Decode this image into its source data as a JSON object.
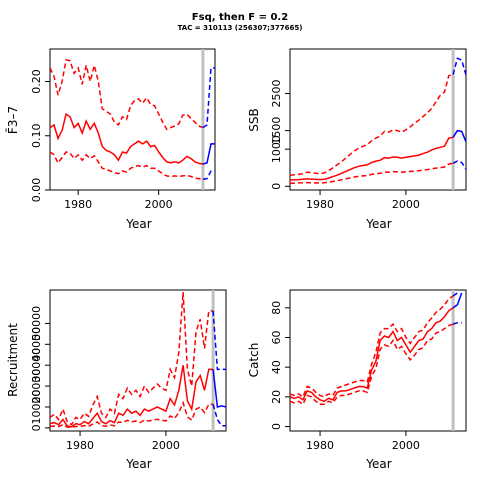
{
  "figure": {
    "title": "Fsq, then F = 0.2",
    "subtitle": "TAC = 310113 (256307;377665)"
  },
  "colors": {
    "historical": "#ff0000",
    "projection": "#0000ff",
    "divider": "#c0c0c0"
  },
  "chart_data": [
    {
      "type": "line",
      "ylabel": "F̄3–7",
      "xlabel": "Year",
      "xlim": [
        1973,
        2014
      ],
      "ylim": [
        0,
        0.26
      ],
      "x_ticks": [
        1980,
        2000
      ],
      "y_ticks": [
        0.0,
        0.1,
        0.2
      ],
      "y_tick_labels": [
        "0.00",
        "0.10",
        "0.20"
      ],
      "divider_x": 2011,
      "historical": {
        "x": [
          1973,
          1974,
          1975,
          1976,
          1977,
          1978,
          1979,
          1980,
          1981,
          1982,
          1983,
          1984,
          1985,
          1986,
          1987,
          1988,
          1989,
          1990,
          1991,
          1992,
          1993,
          1994,
          1995,
          1996,
          1997,
          1998,
          1999,
          2000,
          2001,
          2002,
          2003,
          2004,
          2005,
          2006,
          2007,
          2008,
          2009,
          2010,
          2011
        ],
        "median": [
          0.115,
          0.12,
          0.095,
          0.11,
          0.14,
          0.135,
          0.115,
          0.123,
          0.105,
          0.127,
          0.112,
          0.123,
          0.105,
          0.08,
          0.073,
          0.07,
          0.065,
          0.055,
          0.07,
          0.068,
          0.08,
          0.085,
          0.09,
          0.085,
          0.09,
          0.08,
          0.082,
          0.07,
          0.06,
          0.052,
          0.05,
          0.052,
          0.05,
          0.055,
          0.062,
          0.058,
          0.052,
          0.049,
          0.048
        ],
        "upper": [
          0.225,
          0.21,
          0.175,
          0.2,
          0.24,
          0.238,
          0.215,
          0.225,
          0.195,
          0.23,
          0.2,
          0.23,
          0.2,
          0.15,
          0.145,
          0.14,
          0.125,
          0.12,
          0.135,
          0.13,
          0.155,
          0.165,
          0.168,
          0.16,
          0.17,
          0.158,
          0.155,
          0.14,
          0.125,
          0.112,
          0.115,
          0.118,
          0.122,
          0.138,
          0.14,
          0.132,
          0.125,
          0.118,
          0.115
        ],
        "lower": [
          0.07,
          0.065,
          0.05,
          0.06,
          0.07,
          0.068,
          0.058,
          0.065,
          0.055,
          0.065,
          0.058,
          0.063,
          0.052,
          0.04,
          0.038,
          0.035,
          0.032,
          0.03,
          0.035,
          0.033,
          0.04,
          0.043,
          0.045,
          0.042,
          0.045,
          0.04,
          0.04,
          0.035,
          0.03,
          0.026,
          0.025,
          0.026,
          0.025,
          0.026,
          0.027,
          0.025,
          0.022,
          0.021,
          0.02
        ]
      },
      "projection": {
        "x": [
          2011,
          2012,
          2013,
          2014
        ],
        "median": [
          0.048,
          0.05,
          0.085,
          0.085
        ],
        "upper": [
          0.115,
          0.12,
          0.225,
          0.225
        ],
        "lower": [
          0.02,
          0.021,
          0.035,
          0.035
        ]
      }
    },
    {
      "type": "line",
      "ylabel": "SSB",
      "xlabel": "Year",
      "xlim": [
        1973,
        2014
      ],
      "ylim": [
        -100,
        3700
      ],
      "x_ticks": [
        1980,
        2000
      ],
      "y_ticks": [
        0,
        1000,
        1500,
        2500
      ],
      "y_tick_labels": [
        "0",
        "1000",
        "1500",
        "2500"
      ],
      "divider_x": 2011,
      "historical": {
        "x": [
          1973,
          1974,
          1975,
          1976,
          1977,
          1978,
          1979,
          1980,
          1981,
          1982,
          1983,
          1984,
          1985,
          1986,
          1987,
          1988,
          1989,
          1990,
          1991,
          1992,
          1993,
          1994,
          1995,
          1996,
          1997,
          1998,
          1999,
          2000,
          2001,
          2002,
          2003,
          2004,
          2005,
          2006,
          2007,
          2008,
          2009,
          2010,
          2011
        ],
        "median": [
          170,
          175,
          180,
          190,
          200,
          195,
          185,
          180,
          190,
          220,
          260,
          300,
          350,
          400,
          450,
          500,
          540,
          560,
          580,
          640,
          680,
          700,
          770,
          760,
          790,
          780,
          760,
          780,
          800,
          820,
          840,
          880,
          920,
          980,
          1020,
          1050,
          1080,
          1300,
          1320
        ],
        "upper": [
          300,
          310,
          320,
          340,
          380,
          370,
          350,
          340,
          360,
          420,
          500,
          580,
          660,
          760,
          860,
          950,
          1030,
          1080,
          1120,
          1230,
          1300,
          1350,
          1480,
          1460,
          1520,
          1500,
          1460,
          1520,
          1600,
          1700,
          1780,
          1880,
          1980,
          2100,
          2280,
          2450,
          2540,
          2980,
          3010
        ],
        "lower": [
          80,
          85,
          90,
          95,
          100,
          98,
          92,
          90,
          95,
          110,
          130,
          150,
          175,
          200,
          225,
          250,
          270,
          280,
          290,
          320,
          340,
          350,
          385,
          380,
          395,
          390,
          380,
          390,
          400,
          410,
          420,
          440,
          450,
          470,
          490,
          500,
          520,
          600,
          620
        ]
      },
      "projection": {
        "x": [
          2011,
          2012,
          2013,
          2014
        ],
        "median": [
          1320,
          1500,
          1480,
          1200
        ],
        "upper": [
          3010,
          3450,
          3400,
          3000
        ],
        "lower": [
          620,
          680,
          640,
          460
        ]
      }
    },
    {
      "type": "line",
      "ylabel": "Recruitment",
      "xlabel": "Year",
      "xlim": [
        1973,
        2014
      ],
      "ylim": [
        -1500,
        66000
      ],
      "x_ticks": [
        1980,
        2000
      ],
      "y_ticks": [
        0,
        10000,
        20000,
        30000,
        40000,
        50000
      ],
      "y_tick_labels": [
        "0",
        "10000",
        "20000",
        "30000",
        "40000",
        "50000"
      ],
      "divider_x": 2011,
      "historical": {
        "x": [
          1973,
          1974,
          1975,
          1976,
          1977,
          1978,
          1979,
          1980,
          1981,
          1982,
          1983,
          1984,
          1985,
          1986,
          1987,
          1988,
          1989,
          1990,
          1991,
          1992,
          1993,
          1994,
          1995,
          1996,
          1997,
          1998,
          1999,
          2000,
          2001,
          2002,
          2003,
          2004,
          2005,
          2006,
          2007,
          2008,
          2009,
          2010,
          2011
        ],
        "median": [
          2000,
          2500,
          1500,
          4000,
          1000,
          500,
          2000,
          1500,
          3000,
          2000,
          4500,
          7000,
          3000,
          2000,
          3500,
          2500,
          7000,
          6000,
          9000,
          7000,
          8000,
          6000,
          9000,
          8000,
          9000,
          10000,
          9000,
          8000,
          14000,
          11000,
          18000,
          30000,
          13000,
          9000,
          22000,
          25000,
          18000,
          28000,
          28000
        ],
        "upper": [
          5000,
          6500,
          4000,
          9000,
          3000,
          1500,
          5000,
          4000,
          7000,
          5500,
          11000,
          15000,
          7000,
          5000,
          9000,
          7000,
          16000,
          14000,
          19000,
          16000,
          18000,
          15000,
          20000,
          17000,
          19000,
          21000,
          19000,
          18000,
          28000,
          24000,
          36000,
          65000,
          28000,
          20000,
          46000,
          52000,
          38000,
          56000,
          56000
        ],
        "lower": [
          700,
          900,
          600,
          1500,
          400,
          200,
          700,
          600,
          1100,
          800,
          1800,
          2800,
          1200,
          800,
          1400,
          1000,
          2800,
          2500,
          3600,
          2900,
          3300,
          2500,
          3700,
          3300,
          3700,
          4100,
          3700,
          3300,
          5700,
          4500,
          7300,
          12000,
          5300,
          3700,
          8900,
          10000,
          7300,
          11300,
          11300
        ]
      },
      "projection": {
        "x": [
          2011,
          2012,
          2013,
          2014
        ],
        "median": [
          28000,
          10000,
          10500,
          10000
        ],
        "upper": [
          56000,
          28000,
          28000,
          28000
        ],
        "lower": [
          11300,
          4000,
          1000,
          1000
        ]
      }
    },
    {
      "type": "line",
      "ylabel": "Catch",
      "xlabel": "Year",
      "xlim": [
        1973,
        2014
      ],
      "ylim": [
        -3,
        92
      ],
      "x_ticks": [
        1980,
        2000
      ],
      "y_ticks": [
        0,
        20,
        40,
        60,
        80
      ],
      "y_tick_labels": [
        "0",
        "20",
        "40",
        "60",
        "80"
      ],
      "divider_x": 2011,
      "historical": {
        "x": [
          1973,
          1974,
          1975,
          1976,
          1977,
          1978,
          1979,
          1980,
          1981,
          1982,
          1983,
          1984,
          1985,
          1986,
          1987,
          1988,
          1989,
          1990,
          1991,
          1992,
          1993,
          1994,
          1995,
          1996,
          1997,
          1998,
          1999,
          2000,
          2001,
          2002,
          2003,
          2004,
          2005,
          2006,
          2007,
          2008,
          2009,
          2010,
          2011
        ],
        "median": [
          20,
          19,
          20,
          18,
          24,
          23,
          20,
          18,
          17,
          19,
          18,
          23,
          24,
          24,
          25,
          26,
          27,
          27,
          26,
          38,
          44,
          58,
          61,
          60,
          64,
          58,
          60,
          55,
          50,
          54,
          58,
          59,
          64,
          66,
          70,
          71,
          74,
          78,
          80
        ],
        "upper": [
          22,
          21,
          22,
          20,
          27,
          26,
          23,
          21,
          20,
          22,
          21,
          26,
          27,
          28,
          29,
          30,
          31,
          31,
          30,
          42,
          50,
          63,
          66,
          66,
          69,
          64,
          66,
          60,
          56,
          60,
          64,
          65,
          70,
          73,
          77,
          79,
          82,
          86,
          88
        ],
        "lower": [
          17,
          16,
          17,
          15,
          21,
          20,
          17,
          15,
          15,
          17,
          16,
          20,
          21,
          21,
          22,
          23,
          24,
          24,
          23,
          34,
          39,
          52,
          55,
          54,
          58,
          52,
          54,
          49,
          45,
          48,
          52,
          53,
          58,
          59,
          63,
          64,
          66,
          68,
          69
        ]
      },
      "projection": {
        "x": [
          2011,
          2012,
          2013
        ],
        "median": [
          80,
          82,
          90
        ],
        "upper": [
          88,
          90,
          100
        ],
        "lower": [
          69,
          70,
          70
        ]
      }
    }
  ]
}
